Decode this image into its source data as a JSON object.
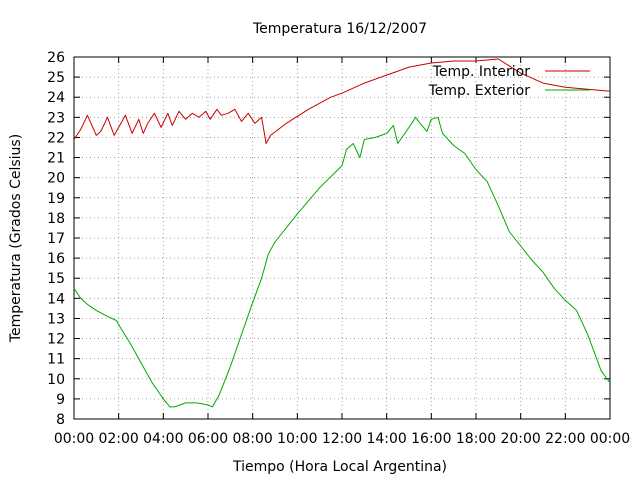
{
  "chart_data": {
    "type": "line",
    "title": "Temperatura 16/12/2007",
    "xlabel": "Tiempo (Hora Local Argentina)",
    "ylabel": "Temperatura (Grados Celsius)",
    "xlim": [
      0,
      24
    ],
    "ylim": [
      8,
      26
    ],
    "x_ticks": [
      0,
      2,
      4,
      6,
      8,
      10,
      12,
      14,
      16,
      18,
      20,
      22,
      24
    ],
    "x_tick_labels": [
      "00:00",
      "02:00",
      "04:00",
      "06:00",
      "08:00",
      "10:00",
      "12:00",
      "14:00",
      "16:00",
      "18:00",
      "20:00",
      "22:00",
      "00:00"
    ],
    "y_ticks": [
      8,
      9,
      10,
      11,
      12,
      13,
      14,
      15,
      16,
      17,
      18,
      19,
      20,
      21,
      22,
      23,
      24,
      25,
      26
    ],
    "grid": true,
    "legend_position": "top-right",
    "series": [
      {
        "name": "Temp. Interior",
        "color": "#cc0000",
        "x": [
          0,
          0.3,
          0.6,
          0.8,
          1.0,
          1.2,
          1.5,
          1.8,
          2.1,
          2.3,
          2.6,
          2.9,
          3.1,
          3.3,
          3.6,
          3.9,
          4.2,
          4.4,
          4.7,
          5.0,
          5.3,
          5.6,
          5.9,
          6.1,
          6.4,
          6.6,
          6.9,
          7.2,
          7.5,
          7.8,
          8.1,
          8.4,
          8.6,
          8.8,
          9.5,
          10.5,
          11.5,
          12.0,
          13.0,
          14.0,
          15.0,
          16.0,
          17.0,
          18.0,
          19.0,
          20.0,
          21.0,
          22.0,
          23.0,
          24.0
        ],
        "y": [
          21.9,
          22.4,
          23.1,
          22.6,
          22.1,
          22.3,
          23.0,
          22.1,
          22.7,
          23.1,
          22.2,
          22.9,
          22.2,
          22.7,
          23.2,
          22.5,
          23.2,
          22.6,
          23.3,
          22.9,
          23.2,
          23.0,
          23.3,
          22.9,
          23.4,
          23.1,
          23.2,
          23.4,
          22.8,
          23.2,
          22.7,
          23.0,
          21.7,
          22.1,
          22.7,
          23.4,
          24.0,
          24.2,
          24.7,
          25.1,
          25.5,
          25.7,
          25.8,
          25.8,
          25.9,
          25.2,
          24.7,
          24.5,
          24.4,
          24.3
        ]
      },
      {
        "name": "Temp. Exterior",
        "color": "#00aa00",
        "x": [
          0,
          0.3,
          0.6,
          1.0,
          1.5,
          1.9,
          2.1,
          2.5,
          3.0,
          3.5,
          4.0,
          4.3,
          4.5,
          5.0,
          5.5,
          6.0,
          6.2,
          6.5,
          7.0,
          7.5,
          8.0,
          8.4,
          8.7,
          9.0,
          10.0,
          11.0,
          12.0,
          12.2,
          12.5,
          12.8,
          13.0,
          13.5,
          14.0,
          14.3,
          14.5,
          15.0,
          15.3,
          15.5,
          15.8,
          16.0,
          16.3,
          16.5,
          17.0,
          17.5,
          18.0,
          18.5,
          19.0,
          19.5,
          20.0,
          20.5,
          21.0,
          21.5,
          22.0,
          22.5,
          23.0,
          23.3,
          23.6,
          24.0
        ],
        "y": [
          14.5,
          14.0,
          13.7,
          13.4,
          13.1,
          12.9,
          12.5,
          11.8,
          10.8,
          9.8,
          9.0,
          8.6,
          8.6,
          8.8,
          8.8,
          8.7,
          8.6,
          9.2,
          10.6,
          12.2,
          13.8,
          15.0,
          16.2,
          16.8,
          18.2,
          19.5,
          20.6,
          21.4,
          21.7,
          21.0,
          21.9,
          22.0,
          22.2,
          22.6,
          21.7,
          22.5,
          23.0,
          22.7,
          22.3,
          22.9,
          23.0,
          22.2,
          21.6,
          21.2,
          20.4,
          19.8,
          18.6,
          17.3,
          16.6,
          15.9,
          15.3,
          14.5,
          13.9,
          13.4,
          12.2,
          11.3,
          10.4,
          9.8
        ]
      }
    ]
  }
}
